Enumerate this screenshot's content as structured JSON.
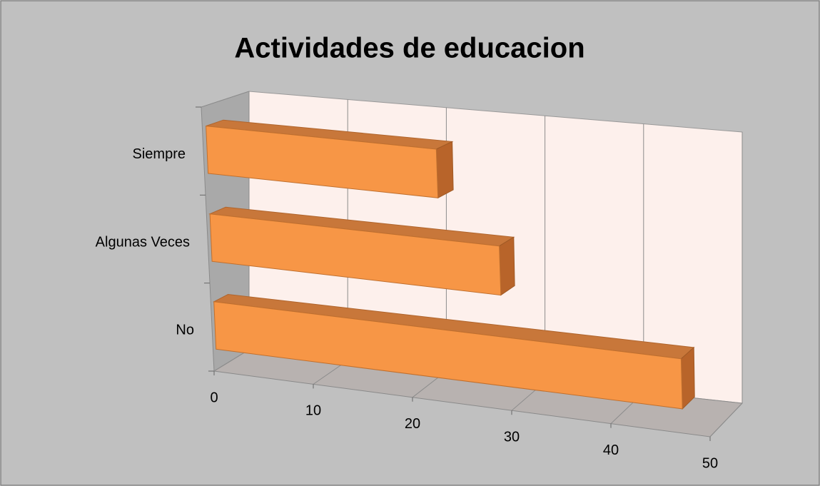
{
  "chart_data": {
    "type": "bar3d",
    "title": "Actividades de educacion",
    "categories": [
      "Siempre",
      "Algunas Veces",
      "No"
    ],
    "values": [
      23,
      29,
      47
    ],
    "color": "#f79646",
    "xlim": [
      0,
      50
    ],
    "xticks": [
      0,
      10,
      20,
      30,
      40,
      50
    ],
    "grid": true
  }
}
